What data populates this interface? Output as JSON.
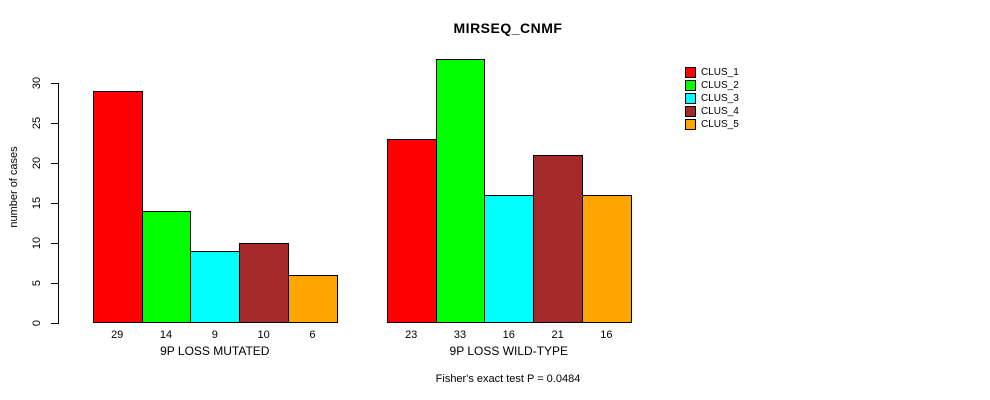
{
  "chart_data": {
    "type": "bar",
    "title": "MIRSEQ_CNMF",
    "ylabel": "number of cases",
    "annotation": "Fisher's exact test P = 0.0484",
    "categories": [
      "9P LOSS MUTATED",
      "9P LOSS WILD-TYPE"
    ],
    "series": [
      {
        "name": "CLUS_1",
        "color": "#FF0000",
        "values": [
          29,
          23
        ]
      },
      {
        "name": "CLUS_2",
        "color": "#00FF00",
        "values": [
          14,
          33
        ]
      },
      {
        "name": "CLUS_3",
        "color": "#00FFFF",
        "values": [
          9,
          16
        ]
      },
      {
        "name": "CLUS_4",
        "color": "#A52A2A",
        "values": [
          10,
          21
        ]
      },
      {
        "name": "CLUS_5",
        "color": "#FFA500",
        "values": [
          6,
          16
        ]
      }
    ],
    "yticks": [
      0,
      5,
      10,
      15,
      20,
      25,
      30
    ],
    "ylim": [
      0,
      33
    ],
    "grid": false,
    "bar_value_labels": true,
    "legend_position": "right"
  }
}
